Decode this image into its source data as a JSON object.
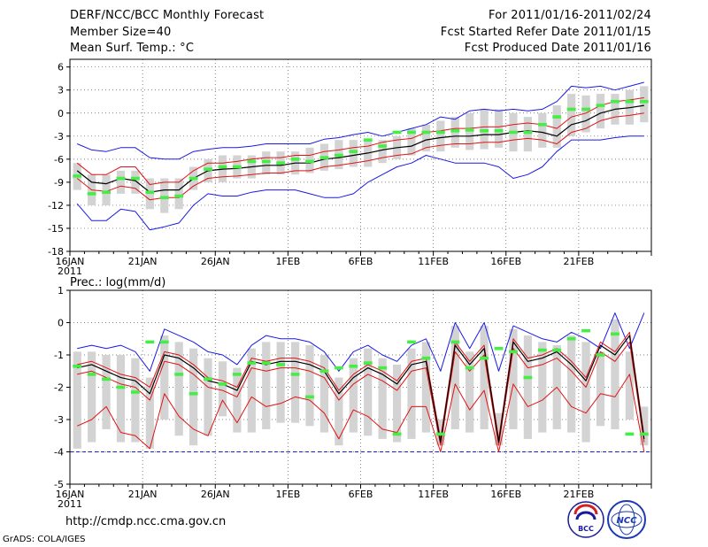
{
  "header": {
    "title": "DERF/NCC/BCC Monthly Forecast",
    "member_size": "Member Size=40",
    "variable": "Mean Surf. Temp.: °C",
    "period": "For 2011/01/16-2011/02/24",
    "started": "Fcst Started Refer Date 2011/01/15",
    "produced": "Fcst Produced Date 2011/01/16"
  },
  "footer": {
    "url": "http://cmdp.ncc.cma.gov.cn",
    "credit": "GrADS: COLA/IGES",
    "logo_bcc_text": "BCC",
    "logo_ncc_text": "NCC"
  },
  "colors": {
    "envelope": "#1a1ae6",
    "mean": "#000000",
    "spread": "#e01414",
    "marker": "#44ee44",
    "box": "#d3d3d3",
    "grid": "#555555"
  },
  "chart_data": [
    {
      "type": "line",
      "title": "Mean Surf. Temp.: °C",
      "xlabel": "",
      "ylabel": "°C",
      "ylim": [
        -18,
        7
      ],
      "yticks": [
        6,
        3,
        0,
        -3,
        -6,
        -9,
        -12,
        -15,
        -18
      ],
      "xtick_labels": [
        "16JAN",
        "21JAN",
        "26JAN",
        "1FEB",
        "6FEB",
        "11FEB",
        "16FEB",
        "21FEB"
      ],
      "xtick_year": "2011",
      "x_start_label": "16JAN",
      "n_days": 40,
      "series": [
        {
          "name": "upper envelope",
          "color": "#1a1ae6",
          "values": [
            -4.0,
            -4.8,
            -5.0,
            -4.5,
            -4.5,
            -5.8,
            -6.0,
            -6.0,
            -5.0,
            -4.7,
            -4.5,
            -4.5,
            -4.3,
            -4.0,
            -4.0,
            -4.0,
            -4.0,
            -3.4,
            -3.2,
            -2.8,
            -2.5,
            -3.0,
            -2.5,
            -2.0,
            -1.5,
            -0.5,
            -0.8,
            0.3,
            0.5,
            0.3,
            0.5,
            0.3,
            0.5,
            1.5,
            3.5,
            3.3,
            3.5,
            3.0,
            3.5,
            4.0
          ]
        },
        {
          "name": "ensemble mean",
          "color": "#000000",
          "values": [
            -7.5,
            -9.0,
            -9.2,
            -8.5,
            -8.8,
            -10.3,
            -10.0,
            -10.0,
            -8.5,
            -7.5,
            -7.3,
            -7.2,
            -7.0,
            -6.8,
            -6.8,
            -6.5,
            -6.5,
            -6.0,
            -5.8,
            -5.5,
            -5.2,
            -4.8,
            -4.5,
            -4.3,
            -3.5,
            -3.2,
            -3.0,
            -3.0,
            -2.8,
            -2.8,
            -2.5,
            -2.3,
            -2.5,
            -3.0,
            -1.5,
            -1.0,
            0.0,
            0.5,
            0.7,
            1.0
          ]
        },
        {
          "name": "upper spread",
          "color": "#e01414",
          "values": [
            -6.5,
            -8.0,
            -8.0,
            -7.0,
            -7.0,
            -9.3,
            -9.0,
            -9.0,
            -7.5,
            -6.5,
            -6.5,
            -6.3,
            -6.0,
            -5.8,
            -5.8,
            -5.5,
            -5.5,
            -5.0,
            -4.8,
            -4.5,
            -4.3,
            -3.8,
            -3.5,
            -3.3,
            -2.5,
            -2.3,
            -2.0,
            -2.0,
            -1.8,
            -1.8,
            -1.5,
            -1.3,
            -1.5,
            -2.0,
            -0.5,
            0.0,
            1.0,
            1.5,
            1.7,
            2.0
          ]
        },
        {
          "name": "lower spread",
          "color": "#e01414",
          "values": [
            -8.5,
            -10.0,
            -10.2,
            -9.5,
            -9.8,
            -11.3,
            -11.0,
            -11.0,
            -9.5,
            -8.5,
            -8.3,
            -8.2,
            -8.0,
            -7.8,
            -7.8,
            -7.5,
            -7.5,
            -7.0,
            -6.8,
            -6.5,
            -6.2,
            -5.8,
            -5.5,
            -5.3,
            -4.5,
            -4.2,
            -4.0,
            -4.0,
            -3.8,
            -3.8,
            -3.5,
            -3.3,
            -3.5,
            -4.0,
            -2.5,
            -2.0,
            -1.0,
            -0.5,
            -0.3,
            0.0
          ]
        },
        {
          "name": "lower envelope",
          "color": "#1a1ae6",
          "values": [
            -11.8,
            -14.0,
            -14.0,
            -12.5,
            -12.8,
            -15.2,
            -14.8,
            -14.3,
            -12.0,
            -10.5,
            -10.8,
            -10.8,
            -10.3,
            -10.0,
            -10.0,
            -10.0,
            -10.5,
            -11.0,
            -11.0,
            -10.5,
            -9.0,
            -8.0,
            -7.0,
            -6.5,
            -5.5,
            -6.0,
            -6.5,
            -6.5,
            -6.5,
            -7.0,
            -8.5,
            -8.0,
            -7.0,
            -5.0,
            -3.5,
            -3.5,
            -3.5,
            -3.2,
            -3.0,
            -3.0
          ]
        },
        {
          "name": "markers",
          "color": "#44ee44",
          "values": [
            -8.2,
            -10.5,
            -10.3,
            -8.5,
            -8.5,
            -10.3,
            -11.0,
            -10.8,
            -8.5,
            -7.3,
            -7.0,
            -7.0,
            -6.3,
            -6.3,
            -6.5,
            -6.0,
            -6.3,
            -5.8,
            -5.5,
            -5.0,
            -3.5,
            -4.3,
            -2.5,
            -2.5,
            -2.5,
            -2.5,
            -2.3,
            -2.2,
            -2.3,
            -2.3,
            -2.5,
            -2.5,
            -1.5,
            -0.5,
            0.5,
            0.5,
            1.0,
            1.5,
            1.5,
            1.5
          ]
        },
        {
          "name": "box low",
          "color": "#d3d3d3",
          "values": [
            -10.0,
            -12.0,
            -12.0,
            -10.5,
            -10.5,
            -12.5,
            -13.0,
            -12.5,
            -10.0,
            -9.0,
            -9.0,
            -8.5,
            -8.5,
            -8.0,
            -8.0,
            -8.0,
            -7.8,
            -7.5,
            -7.3,
            -7.0,
            -7.0,
            -6.5,
            -6.0,
            -5.5,
            -5.0,
            -5.0,
            -4.5,
            -4.8,
            -4.7,
            -4.5,
            -5.0,
            -5.0,
            -4.5,
            -4.5,
            -3.0,
            -2.5,
            -2.0,
            -1.5,
            -1.5,
            -1.2
          ]
        },
        {
          "name": "box high",
          "color": "#d3d3d3",
          "values": [
            -6.5,
            -8.0,
            -8.0,
            -7.5,
            -7.5,
            -8.5,
            -8.5,
            -8.5,
            -7.0,
            -6.0,
            -5.5,
            -5.5,
            -5.5,
            -5.0,
            -5.0,
            -5.0,
            -4.5,
            -4.0,
            -3.5,
            -3.5,
            -3.5,
            -3.5,
            -3.0,
            -2.0,
            -1.5,
            -1.0,
            -0.5,
            0.0,
            0.5,
            0.5,
            0.0,
            -0.5,
            0.0,
            1.0,
            2.5,
            2.3,
            2.5,
            2.5,
            3.0,
            3.5
          ]
        }
      ]
    },
    {
      "type": "line",
      "title": "Prec.: log(mm/d)",
      "xlabel": "",
      "ylabel": "log(mm/d)",
      "ylim": [
        -5,
        1
      ],
      "yticks": [
        1,
        0,
        -1,
        -2,
        -3,
        -4,
        -5
      ],
      "xtick_labels": [
        "16JAN",
        "21JAN",
        "26JAN",
        "1FEB",
        "6FEB",
        "11FEB",
        "16FEB",
        "21FEB"
      ],
      "xtick_year": "2011",
      "x_start_label": "16JAN",
      "n_days": 40,
      "baseline": -4,
      "series": [
        {
          "name": "upper envelope",
          "color": "#1a1ae6",
          "values": [
            -0.8,
            -0.7,
            -0.8,
            -0.7,
            -0.9,
            -1.5,
            -0.2,
            -0.4,
            -0.6,
            -0.9,
            -1.0,
            -1.3,
            -0.7,
            -0.4,
            -0.5,
            -0.5,
            -0.6,
            -0.9,
            -1.5,
            -0.9,
            -0.7,
            -1.0,
            -1.2,
            -0.7,
            -0.5,
            -1.5,
            0.0,
            -0.8,
            0.0,
            -1.5,
            -0.1,
            -0.3,
            -0.5,
            -0.6,
            -0.3,
            -0.5,
            -0.8,
            0.3,
            -0.8,
            0.3
          ]
        },
        {
          "name": "ensemble mean",
          "color": "#000000",
          "values": [
            -1.4,
            -1.3,
            -1.5,
            -1.7,
            -1.8,
            -2.2,
            -1.0,
            -1.1,
            -1.4,
            -1.8,
            -1.9,
            -2.1,
            -1.2,
            -1.3,
            -1.2,
            -1.2,
            -1.3,
            -1.5,
            -2.2,
            -1.7,
            -1.4,
            -1.6,
            -1.9,
            -1.3,
            -1.2,
            -3.7,
            -0.7,
            -1.3,
            -0.8,
            -3.7,
            -0.6,
            -1.2,
            -1.1,
            -0.9,
            -1.3,
            -1.8,
            -0.7,
            -1.0,
            -0.4,
            -3.6
          ]
        },
        {
          "name": "upper spread",
          "color": "#e01414",
          "values": [
            -1.3,
            -1.2,
            -1.4,
            -1.6,
            -1.7,
            -2.0,
            -0.9,
            -1.0,
            -1.3,
            -1.7,
            -1.8,
            -2.0,
            -1.1,
            -1.2,
            -1.1,
            -1.1,
            -1.2,
            -1.4,
            -2.1,
            -1.6,
            -1.3,
            -1.5,
            -1.8,
            -1.2,
            -1.1,
            -3.6,
            -0.6,
            -1.2,
            -0.7,
            -3.6,
            -0.5,
            -1.1,
            -1.0,
            -0.8,
            -1.2,
            -1.7,
            -0.6,
            -0.9,
            -0.3,
            -3.5
          ]
        },
        {
          "name": "lower spread",
          "color": "#e01414",
          "values": [
            -1.6,
            -1.5,
            -1.7,
            -1.9,
            -2.0,
            -2.4,
            -1.2,
            -1.3,
            -1.6,
            -2.0,
            -2.1,
            -2.3,
            -1.4,
            -1.5,
            -1.4,
            -1.4,
            -1.5,
            -1.7,
            -2.4,
            -1.9,
            -1.6,
            -1.8,
            -2.1,
            -1.5,
            -1.4,
            -3.8,
            -0.9,
            -1.5,
            -1.0,
            -3.8,
            -0.8,
            -1.4,
            -1.3,
            -1.1,
            -1.5,
            -2.0,
            -0.9,
            -1.2,
            -0.6,
            -3.7
          ]
        },
        {
          "name": "lower envelope",
          "color": "#e01414",
          "values": [
            -3.2,
            -3.0,
            -2.6,
            -3.4,
            -3.5,
            -3.9,
            -2.2,
            -2.9,
            -3.3,
            -3.5,
            -2.4,
            -3.1,
            -2.3,
            -2.6,
            -2.5,
            -2.3,
            -2.4,
            -2.8,
            -3.6,
            -2.7,
            -2.9,
            -3.3,
            -3.4,
            -2.6,
            -2.6,
            -4.0,
            -1.9,
            -2.7,
            -2.1,
            -4.0,
            -1.9,
            -2.6,
            -2.4,
            -2.0,
            -2.6,
            -2.8,
            -2.2,
            -2.3,
            -1.6,
            -4.0
          ]
        },
        {
          "name": "markers",
          "color": "#44ee44",
          "values": [
            -1.35,
            -1.6,
            -1.75,
            -2.0,
            -2.15,
            -0.6,
            -0.6,
            -1.6,
            -2.2,
            -1.75,
            -1.9,
            -1.6,
            -1.25,
            -1.25,
            -1.3,
            -1.6,
            -2.3,
            -1.5,
            -1.4,
            -1.35,
            -1.25,
            -1.4,
            -3.45,
            -0.6,
            -1.1,
            -3.45,
            -0.6,
            -1.4,
            -1.1,
            -0.8,
            -0.9,
            -1.7,
            -0.85,
            -0.85,
            -0.5,
            -0.25,
            -1.0,
            -0.35,
            -3.45,
            -3.45
          ]
        },
        {
          "name": "box low",
          "color": "#d3d3d3",
          "values": [
            -3.9,
            -3.7,
            -3.3,
            -3.7,
            -3.7,
            -3.9,
            -3.0,
            -3.5,
            -3.8,
            -3.5,
            -2.9,
            -3.4,
            -3.4,
            -3.3,
            -3.1,
            -3.1,
            -3.2,
            -3.4,
            -3.8,
            -3.4,
            -3.5,
            -3.6,
            -3.7,
            -3.6,
            -3.4,
            -3.8,
            -3.3,
            -3.4,
            -3.3,
            -3.8,
            -3.3,
            -3.6,
            -3.4,
            -3.3,
            -3.4,
            -3.7,
            -3.2,
            -3.3,
            -3.0,
            -3.8
          ]
        },
        {
          "name": "box high",
          "color": "#d3d3d3",
          "values": [
            -0.9,
            -0.9,
            -1.0,
            -1.0,
            -1.1,
            -1.7,
            -0.4,
            -0.6,
            -0.8,
            -1.1,
            -1.2,
            -1.4,
            -0.8,
            -0.6,
            -0.6,
            -0.6,
            -0.7,
            -1.0,
            -1.7,
            -1.1,
            -0.8,
            -1.1,
            -1.3,
            -0.8,
            -0.6,
            -3.0,
            -0.1,
            -0.9,
            -0.1,
            -2.8,
            -0.2,
            -0.4,
            -0.6,
            -0.7,
            -0.4,
            -0.6,
            -0.9,
            0.1,
            -0.9,
            -2.6
          ]
        }
      ]
    }
  ]
}
